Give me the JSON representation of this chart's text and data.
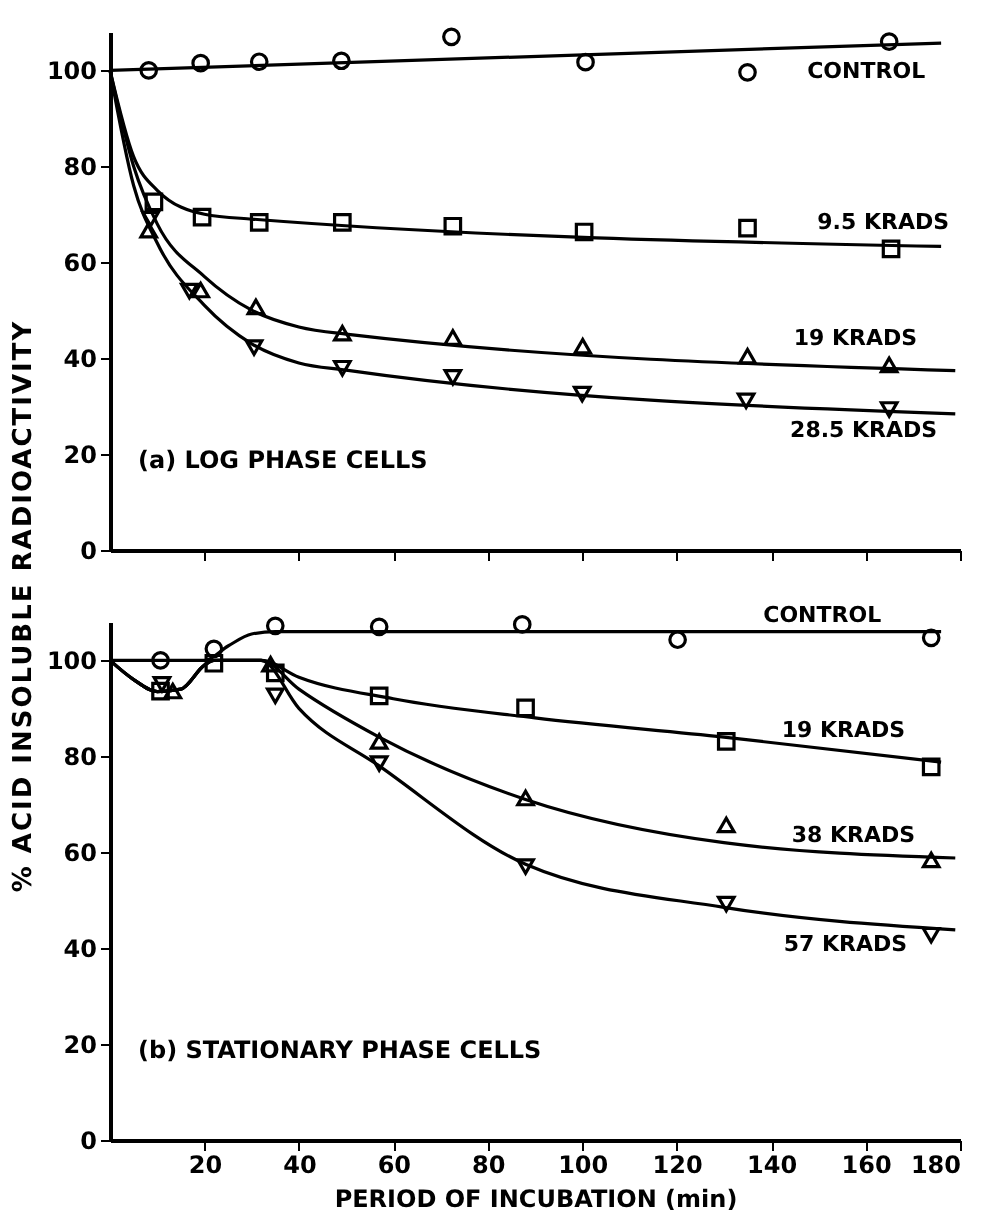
{
  "chart_data": [
    {
      "type": "scatter",
      "ylabel": "% ACID INSOLUBLE RADIOACTIVITY",
      "annotations": [
        "(a) LOG PHASE CELLS"
      ],
      "xlim": [
        0,
        180
      ],
      "xticks": [
        20,
        40,
        60,
        80,
        100,
        120,
        140,
        160,
        180
      ],
      "ylim": [
        0,
        108
      ],
      "yticks": [
        0,
        20,
        40,
        60,
        80,
        100
      ],
      "tick_labels": "y",
      "grid": false,
      "series": [
        {
          "name": "CONTROL",
          "type": "scatter",
          "marker": "circle",
          "color": "#000000",
          "x": [
            8.2,
            19.2,
            31.6,
            49,
            72.3,
            100.7,
            135,
            165
          ],
          "values": [
            100,
            101.5,
            101.8,
            102,
            107,
            101.7,
            99.6,
            106
          ]
        },
        {
          "name": "9.5 KRADS",
          "type": "scatter",
          "marker": "square",
          "color": "#000000",
          "x": [
            9.3,
            19.5,
            31.6,
            49.2,
            72.6,
            100.4,
            135,
            165.4
          ],
          "values": [
            72.6,
            69.4,
            68.3,
            68.3,
            67.5,
            66.3,
            67.1,
            62.8
          ]
        },
        {
          "name": "19 KRADS",
          "type": "scatter",
          "marker": "triangle",
          "color": "#000000",
          "x": [
            8.2,
            19.2,
            30.9,
            49.2,
            72.6,
            100.1,
            135,
            165
          ],
          "values": [
            66.7,
            54.2,
            50.7,
            45.2,
            44.3,
            42.5,
            40.4,
            38.6
          ]
        },
        {
          "name": "28.5 KRADS",
          "type": "scatter",
          "marker": "triangle-down",
          "color": "#000000",
          "x": [
            8.6,
            16.8,
            30.5,
            49.2,
            72.6,
            100,
            134.7,
            165
          ],
          "values": [
            69,
            54,
            42.2,
            37.9,
            36,
            32.5,
            31.1,
            29.3
          ]
        },
        {
          "type": "line",
          "color": "#000000",
          "x": [
            0,
            176
          ],
          "values": [
            100,
            105.7
          ]
        },
        {
          "type": "line",
          "color": "#000000",
          "x": [
            0,
            5,
            10,
            20,
            30,
            176
          ],
          "values": [
            100,
            82,
            75,
            70,
            69,
            63.3
          ]
        },
        {
          "type": "line",
          "color": "#000000",
          "x": [
            0,
            5,
            10,
            20,
            30,
            40,
            50,
            179
          ],
          "values": [
            100,
            80,
            68,
            57,
            50,
            46.5,
            45,
            37.4
          ]
        },
        {
          "type": "line",
          "color": "#000000",
          "x": [
            0,
            5,
            10,
            20,
            30,
            40,
            50,
            179
          ],
          "values": [
            100,
            76,
            64,
            51,
            43,
            39,
            37.5,
            28.4
          ]
        }
      ]
    },
    {
      "type": "scatter",
      "xlabel": "PERIOD OF INCUBATION (min)",
      "annotations": [
        "(b) STATIONARY PHASE CELLS"
      ],
      "xlim": [
        0,
        180
      ],
      "xticks": [
        20,
        40,
        60,
        80,
        100,
        120,
        140,
        160,
        180
      ],
      "ylim": [
        0,
        108
      ],
      "yticks": [
        0,
        20,
        40,
        60,
        80,
        100
      ],
      "grid": false,
      "series": [
        {
          "name": "CONTROL",
          "type": "scatter",
          "marker": "circle",
          "color": "#000000",
          "x": [
            10.7,
            22,
            35,
            57,
            87.3,
            120.2,
            173.9
          ],
          "values": [
            100,
            102.4,
            107.2,
            107,
            107.5,
            104.3,
            104.7
          ]
        },
        {
          "name": "19 KRADS",
          "type": "scatter",
          "marker": "square",
          "color": "#000000",
          "x": [
            10.7,
            22,
            35,
            57,
            88,
            130.5,
            173.9
          ],
          "values": [
            93.6,
            99.4,
            97.4,
            92.6,
            90.1,
            83.1,
            77.8
          ]
        },
        {
          "name": "38 KRADS",
          "type": "scatter",
          "marker": "triangle",
          "color": "#000000",
          "x": [
            13.3,
            34,
            57,
            88,
            130.5,
            173.9
          ],
          "values": [
            93.6,
            99.2,
            83.1,
            71.3,
            65.7,
            58.4
          ]
        },
        {
          "name": "57 KRADS",
          "type": "scatter",
          "marker": "triangle-down",
          "color": "#000000",
          "x": [
            11,
            35,
            57,
            88,
            130.5,
            173.9
          ],
          "values": [
            95,
            92.6,
            78.5,
            57,
            49.2,
            42.7
          ]
        },
        {
          "type": "line",
          "color": "#000000",
          "x": [
            0,
            20,
            25,
            30,
            35,
            176
          ],
          "values": [
            100,
            100,
            103,
            105.5,
            106,
            106
          ]
        },
        {
          "type": "line",
          "color": "#000000",
          "x": [
            0,
            5,
            10,
            15,
            20,
            22,
            32,
            40,
            60,
            90,
            130,
            176
          ],
          "values": [
            100,
            96,
            93.5,
            94,
            99,
            100,
            100,
            96.5,
            92,
            88,
            84,
            78.8
          ]
        },
        {
          "type": "line",
          "color": "#000000",
          "x": [
            0,
            5,
            10,
            15,
            20,
            22,
            32,
            40,
            57,
            88,
            130,
            179
          ],
          "values": [
            100,
            96,
            93.5,
            94,
            99,
            100,
            100,
            94,
            84,
            71,
            62,
            58.8
          ]
        },
        {
          "type": "line",
          "color": "#000000",
          "x": [
            0,
            5,
            10,
            15,
            20,
            22,
            32,
            40,
            57,
            88,
            130,
            179
          ],
          "values": [
            100,
            96,
            93.5,
            94,
            99,
            100,
            100,
            90,
            78,
            57.5,
            48.5,
            43.8
          ]
        }
      ]
    }
  ]
}
